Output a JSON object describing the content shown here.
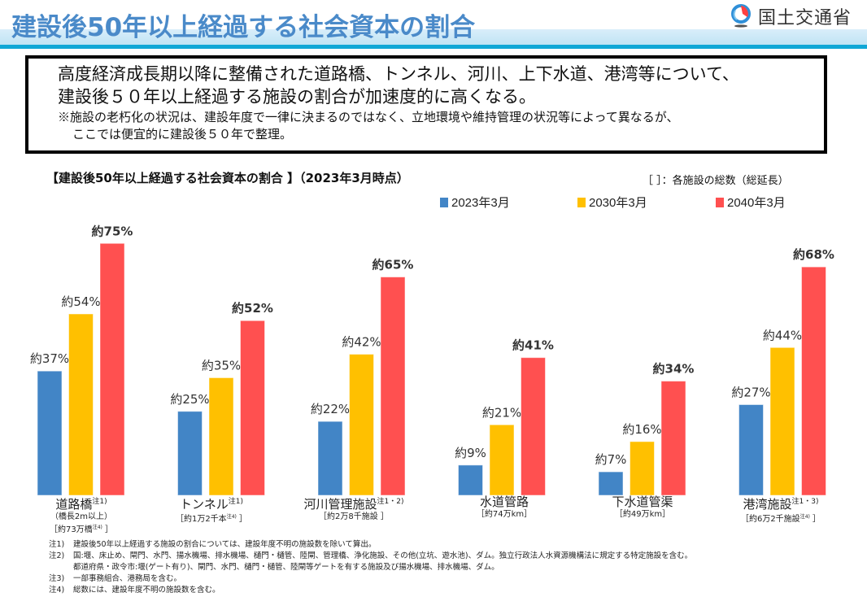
{
  "header": {
    "title": "建設後50年以上経過する社会資本の割合",
    "logo_text": "国土交通省"
  },
  "summary": {
    "line1": "高度経済成長期以降に整備された道路橋、トンネル、河川、上下水道、港湾等について、",
    "line2": "建設後５０年以上経過する施設の割合が加速度的に高くなる。",
    "note1": "※施設の老朽化の状況は、建設年度で一律に決まるのではなく、立地環境や維持管理の状況等によって異なるが、",
    "note2": "ここでは便宜的に建設後５０年で整理。"
  },
  "total_note": "［ ］：各施設の総数（総延長）",
  "categories_detail": [
    {
      "name": "道路橋",
      "sup": "注1)",
      "sub1": "（橋長2m以上）",
      "sub2": "［約73万橋",
      "sub2_sup": "注4)",
      "sub2_end": " ］"
    },
    {
      "name": "トンネル",
      "sup": "注1)",
      "sub1": "［約1万2千本",
      "sub1_sup": "注4)",
      "sub1_end": " ］"
    },
    {
      "name": "河川管理施設",
      "sup": "注1・2)",
      "sub1": "［約2万8千施設 ］"
    },
    {
      "name": "水道管路",
      "sub1": "［約74万km］"
    },
    {
      "name": "下水道管渠",
      "sub1": "［約49万km］"
    },
    {
      "name": "港湾施設",
      "sup": "注1・3)",
      "sub1": "［約6万2千施設",
      "sub1_sup": "注4)",
      "sub1_end": " ］"
    }
  ],
  "notes": [
    {
      "key": "注1)",
      "text": "建設後50年以上経過する施設の割合については、建設年度不明の施設数を除いて算出。"
    },
    {
      "key": "注2)",
      "text": "国:堰、床止め、閘門、水門、揚水機場、排水機場、樋門・樋管、陸閘、管理橋、浄化施設、その他(立坑、遊水池)、ダム。独立行政法人水資源機構法に規定する特定施設を含む。"
    },
    {
      "key": "",
      "text": "都道府県・政令市:堰(ゲート有り)、閘門、水門、樋門・樋管、陸閘等ゲートを有する施設及び揚水機場、排水機場、ダム。"
    },
    {
      "key": "注3)",
      "text": "一部事務組合、港務局を含む。"
    },
    {
      "key": "注4)",
      "text": "総数には、建設年度不明の施設数を含む。"
    }
  ],
  "chart_data": {
    "type": "bar",
    "title": "【建設後50年以上経過する社会資本の割合 】（2023年3月時点）",
    "xlabel": "",
    "ylabel": "",
    "ylim": [
      0,
      80
    ],
    "grid": false,
    "legend_position": "top-right",
    "categories": [
      "道路橋",
      "トンネル",
      "河川管理施設",
      "水道管路",
      "下水道管渠",
      "港湾施設"
    ],
    "series": [
      {
        "name": "2023年3月",
        "color": "#4285c6",
        "values": [
          37,
          25,
          22,
          9,
          7,
          27
        ],
        "label_prefix": "約",
        "label_suffix": "%",
        "bold": false
      },
      {
        "name": "2030年3月",
        "color": "#ffc000",
        "values": [
          54,
          35,
          42,
          21,
          16,
          44
        ],
        "label_prefix": "約",
        "label_suffix": "%",
        "bold": false
      },
      {
        "name": "2040年3月",
        "color": "#ff5050",
        "values": [
          75,
          52,
          65,
          41,
          34,
          68
        ],
        "label_prefix": "約",
        "label_suffix": "%",
        "bold": true
      }
    ]
  }
}
